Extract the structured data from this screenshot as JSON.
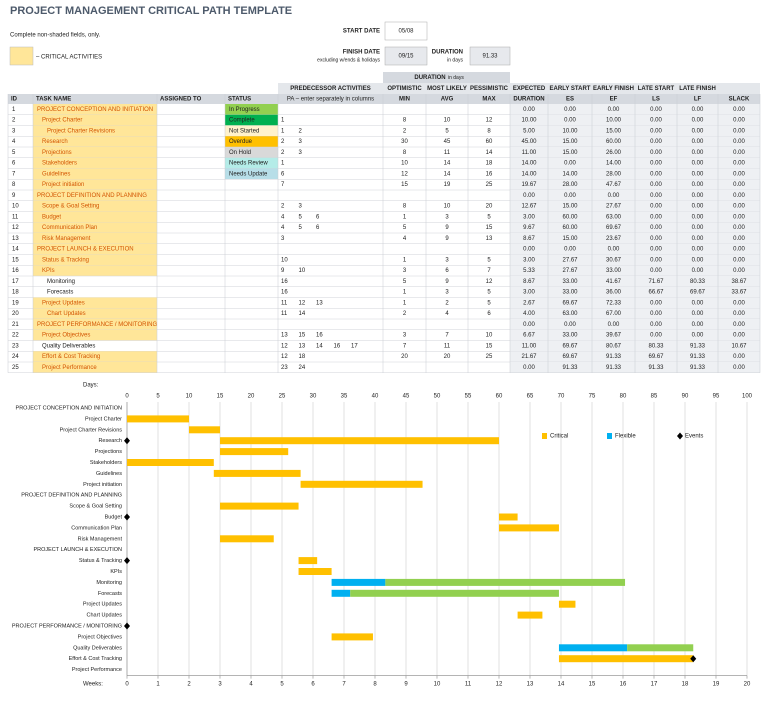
{
  "header": {
    "title": "PROJECT MANAGEMENT CRITICAL PATH TEMPLATE",
    "note": "Complete non-shaded fields, only.",
    "legend_critical": "– CRITICAL ACTIVITIES",
    "start_date_label": "START DATE",
    "start_date": "05/08",
    "finish_date_label": "FINISH DATE",
    "finish_date_sub": "excluding w/ends & holidays",
    "finish_date": "09/15",
    "duration_label": "DURATION",
    "duration_sub": "in days",
    "duration": 91.33
  },
  "table": {
    "duration_group": "DURATION",
    "duration_group_sub": "in days",
    "headers_top": [
      null,
      null,
      null,
      null,
      "PREDECESSOR ACTIVITIES",
      "OPTIMISTIC",
      "MOST LIKELY",
      "PESSIMISTIC",
      "EXPECTED",
      "EARLY START",
      "EARLY FINISH",
      "LATE START",
      "LATE FINISH",
      null
    ],
    "headers": [
      "ID",
      "TASK NAME",
      "ASSIGNED TO",
      "STATUS",
      "PA  –  enter separately in columns",
      "MIN",
      "AVG",
      "MAX",
      "DURATION",
      "ES",
      "EF",
      "LS",
      "LF",
      "SLACK"
    ],
    "status_colors": [
      "#92d050",
      "#00b050",
      "#fff2cc",
      "#ffc000",
      "#d9d9d9",
      "#b4ece8",
      "#b7dee8",
      null,
      null,
      null,
      null,
      null,
      null,
      null,
      null,
      null,
      null,
      null,
      null,
      null,
      null,
      null,
      null,
      null,
      null
    ],
    "rows": [
      [
        1,
        "PROJECT CONCEPTION AND INITIATION",
        null,
        "In Progress",
        [],
        null,
        null,
        null,
        "0.00",
        "0.00",
        "0.00",
        "0.00",
        "0.00",
        "0.00"
      ],
      [
        2,
        "Project Charter",
        null,
        "Complete",
        [
          1
        ],
        8,
        10,
        12,
        "10.00",
        "0.00",
        "10.00",
        "0.00",
        "0.00",
        "0.00"
      ],
      [
        3,
        "Project Charter Revisions",
        null,
        "Not Started",
        [
          1,
          2
        ],
        2,
        5,
        8,
        "5.00",
        "10.00",
        "15.00",
        "0.00",
        "0.00",
        "0.00"
      ],
      [
        4,
        "Research",
        null,
        "Overdue",
        [
          2,
          3
        ],
        30,
        45,
        60,
        "45.00",
        "15.00",
        "60.00",
        "0.00",
        "0.00",
        "0.00"
      ],
      [
        5,
        "Projections",
        null,
        "On Hold",
        [
          2,
          3
        ],
        8,
        11,
        14,
        "11.00",
        "15.00",
        "26.00",
        "0.00",
        "0.00",
        "0.00"
      ],
      [
        6,
        "Stakeholders",
        null,
        "Needs Review",
        [
          1
        ],
        10,
        14,
        18,
        "14.00",
        "0.00",
        "14.00",
        "0.00",
        "0.00",
        "0.00"
      ],
      [
        7,
        "Guidelines",
        null,
        "Needs Update",
        [
          6
        ],
        12,
        14,
        16,
        "14.00",
        "14.00",
        "28.00",
        "0.00",
        "0.00",
        "0.00"
      ],
      [
        8,
        "Project initiation",
        null,
        null,
        [
          7
        ],
        15,
        19,
        25,
        "19.67",
        "28.00",
        "47.67",
        "0.00",
        "0.00",
        "0.00"
      ],
      [
        9,
        "PROJECT DEFINITION AND PLANNING",
        null,
        null,
        [],
        null,
        null,
        null,
        "0.00",
        "0.00",
        "0.00",
        "0.00",
        "0.00",
        "0.00"
      ],
      [
        10,
        "Scope & Goal Setting",
        null,
        null,
        [
          2,
          3
        ],
        8,
        10,
        20,
        "12.67",
        "15.00",
        "27.67",
        "0.00",
        "0.00",
        "0.00"
      ],
      [
        11,
        "Budget",
        null,
        null,
        [
          4,
          5,
          6
        ],
        1,
        3,
        5,
        "3.00",
        "60.00",
        "63.00",
        "0.00",
        "0.00",
        "0.00"
      ],
      [
        12,
        "Communication Plan",
        null,
        null,
        [
          4,
          5,
          6
        ],
        5,
        9,
        15,
        "9.67",
        "60.00",
        "69.67",
        "0.00",
        "0.00",
        "0.00"
      ],
      [
        13,
        "Risk Management",
        null,
        null,
        [
          3
        ],
        4,
        9,
        13,
        "8.67",
        "15.00",
        "23.67",
        "0.00",
        "0.00",
        "0.00"
      ],
      [
        14,
        "PROJECT LAUNCH & EXECUTION",
        null,
        null,
        [],
        null,
        null,
        null,
        "0.00",
        "0.00",
        "0.00",
        "0.00",
        "0.00",
        "0.00"
      ],
      [
        15,
        "Status & Tracking",
        null,
        null,
        [
          10
        ],
        1,
        3,
        5,
        "3.00",
        "27.67",
        "30.67",
        "0.00",
        "0.00",
        "0.00"
      ],
      [
        16,
        "KPIs",
        null,
        null,
        [
          9,
          10
        ],
        3,
        6,
        7,
        "5.33",
        "27.67",
        "33.00",
        "0.00",
        "0.00",
        "0.00"
      ],
      [
        17,
        "Monitoring",
        null,
        null,
        [
          16
        ],
        5,
        9,
        12,
        "8.67",
        "33.00",
        "41.67",
        "71.67",
        "80.33",
        "38.67"
      ],
      [
        18,
        "Forecasts",
        null,
        null,
        [
          16
        ],
        1,
        3,
        5,
        "3.00",
        "33.00",
        "36.00",
        "66.67",
        "69.67",
        "33.67"
      ],
      [
        19,
        "Project Updates",
        null,
        null,
        [
          11,
          12,
          13
        ],
        1,
        2,
        5,
        "2.67",
        "69.67",
        "72.33",
        "0.00",
        "0.00",
        "0.00"
      ],
      [
        20,
        "Chart Updates",
        null,
        null,
        [
          11,
          14
        ],
        2,
        4,
        6,
        "4.00",
        "63.00",
        "67.00",
        "0.00",
        "0.00",
        "0.00"
      ],
      [
        21,
        "PROJECT PERFORMANCE / MONITORING",
        null,
        null,
        [],
        null,
        null,
        null,
        "0.00",
        "0.00",
        "0.00",
        "0.00",
        "0.00",
        "0.00"
      ],
      [
        22,
        "Project Objectives",
        null,
        null,
        [
          13,
          15,
          16
        ],
        3,
        7,
        10,
        "6.67",
        "33.00",
        "39.67",
        "0.00",
        "0.00",
        "0.00"
      ],
      [
        23,
        "Quality Deliverables",
        null,
        null,
        [
          12,
          13,
          14,
          16,
          17
        ],
        7,
        11,
        15,
        "11.00",
        "69.67",
        "80.67",
        "80.33",
        "91.33",
        "10.67"
      ],
      [
        24,
        "Effort & Cost Tracking",
        null,
        null,
        [
          12,
          18
        ],
        20,
        20,
        25,
        "21.67",
        "69.67",
        "91.33",
        "69.67",
        "91.33",
        "0.00"
      ],
      [
        25,
        "Project Performance",
        null,
        null,
        [
          23,
          24
        ],
        null,
        null,
        null,
        "0.00",
        "91.33",
        "91.33",
        "91.33",
        "91.33",
        "0.00"
      ]
    ]
  },
  "chart_data": {
    "type": "gantt",
    "x_label": "Days:",
    "x2_label": "Weeks:",
    "xlim": [
      0,
      100
    ],
    "xticks": [
      0,
      5,
      10,
      15,
      20,
      25,
      30,
      35,
      40,
      45,
      50,
      55,
      60,
      65,
      70,
      75,
      80,
      85,
      90,
      95,
      100
    ],
    "x2lim": [
      0,
      20
    ],
    "x2ticks": [
      0,
      1,
      2,
      3,
      4,
      5,
      6,
      7,
      8,
      9,
      10,
      11,
      12,
      13,
      14,
      15,
      16,
      17,
      18,
      19,
      20
    ],
    "grid": true,
    "legend": [
      {
        "name": "Critical",
        "color": "#ffc000"
      },
      {
        "name": "Flexible",
        "color": "#00b0f0"
      },
      {
        "name": "Events",
        "color": "#000000"
      }
    ],
    "slack_color": "#92d050",
    "events": {
      "ids": [
        4,
        11,
        15,
        21,
        24
      ],
      "days": [
        0,
        0,
        0,
        0,
        91.33
      ]
    }
  }
}
